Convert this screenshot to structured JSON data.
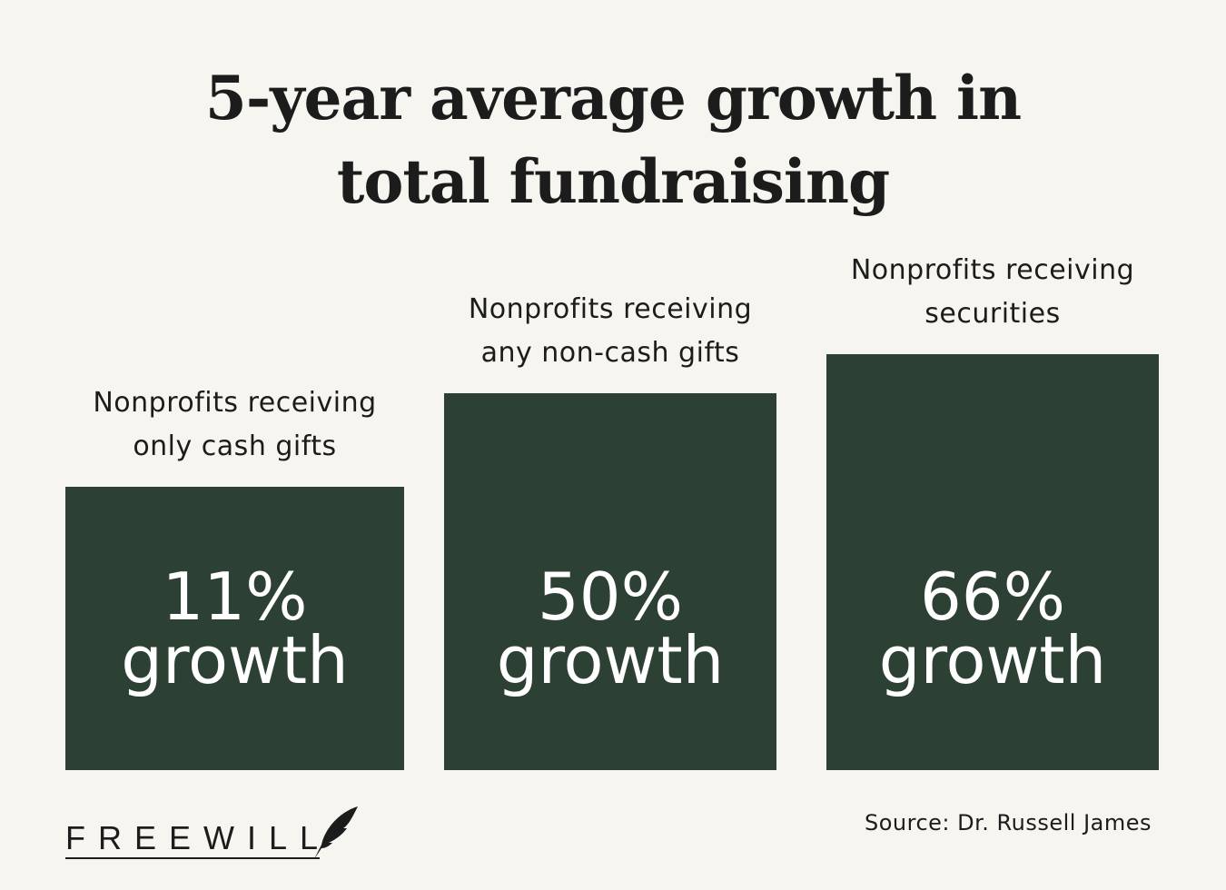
{
  "chart_data": {
    "type": "bar",
    "title": "5-year average growth in total fundraising",
    "categories": [
      "Nonprofits receiving only cash gifts",
      "Nonprofits receiving any non-cash gifts",
      "Nonprofits receiving securities"
    ],
    "category_lines": [
      [
        "Nonprofits receiving",
        "only cash gifts"
      ],
      [
        "Nonprofits receiving",
        "any non-cash gifts"
      ],
      [
        "Nonprofits receiving",
        "securities"
      ]
    ],
    "values": [
      11,
      50,
      66
    ],
    "value_labels": [
      [
        "11%",
        "growth"
      ],
      [
        "50%",
        "growth"
      ],
      [
        "66%",
        "growth"
      ]
    ],
    "unit": "%",
    "bar_color": "#2c4033",
    "background": "#f7f5f0",
    "grid": false,
    "axes_visible": false
  },
  "source": "Source: Dr. Russell James",
  "logo": {
    "text": "FREEWILL",
    "icon": "quill-feather-icon"
  }
}
